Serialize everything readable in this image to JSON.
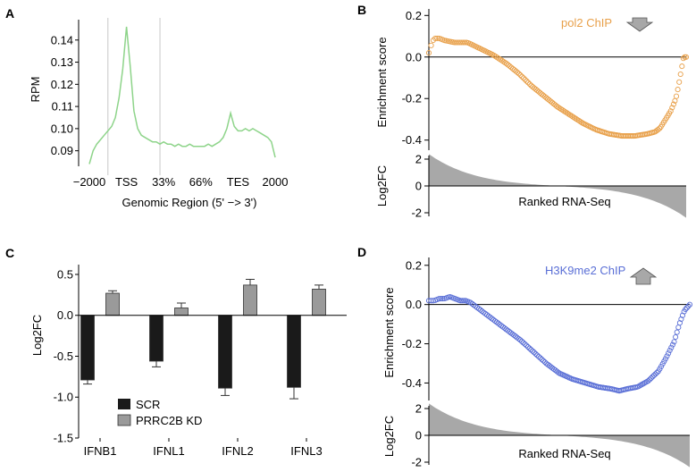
{
  "panels": {
    "a": "A",
    "b": "B",
    "c": "C",
    "d": "D"
  },
  "colors": {
    "green": "#8ed48a",
    "orange": "#e8a04a",
    "blue": "#5a6fd6",
    "gray": "#a8a8a8",
    "black": "#1a1a1a",
    "barGray": "#9a9a9a"
  },
  "chart_data": [
    {
      "id": "A",
      "type": "line",
      "title": "",
      "xlabel": "Genomic Region (5' −> 3')",
      "ylabel": "RPM",
      "xticks": [
        "−2000",
        "TSS",
        "33%",
        "66%",
        "TES",
        "2000"
      ],
      "yticks": [
        "0.09",
        "0.10",
        "0.11",
        "0.12",
        "0.13",
        "0.14"
      ],
      "ylim": [
        0.083,
        0.15
      ],
      "x": [
        0,
        2,
        4,
        6,
        8,
        10,
        12,
        14,
        16,
        18,
        20,
        22,
        24,
        26,
        28,
        30,
        32,
        34,
        36,
        38,
        40,
        42,
        44,
        46,
        48,
        50,
        52,
        54,
        56,
        58,
        60,
        62,
        64,
        66,
        68,
        70,
        72,
        74,
        76,
        78,
        80,
        82,
        84,
        86,
        88,
        90,
        92,
        94,
        96,
        98,
        100
      ],
      "y": [
        0.084,
        0.09,
        0.093,
        0.095,
        0.097,
        0.099,
        0.101,
        0.105,
        0.114,
        0.127,
        0.146,
        0.128,
        0.108,
        0.1,
        0.097,
        0.096,
        0.095,
        0.094,
        0.094,
        0.093,
        0.094,
        0.093,
        0.093,
        0.092,
        0.093,
        0.092,
        0.092,
        0.093,
        0.092,
        0.092,
        0.092,
        0.092,
        0.093,
        0.092,
        0.093,
        0.094,
        0.096,
        0.1,
        0.107,
        0.101,
        0.099,
        0.099,
        0.1,
        0.099,
        0.1,
        0.099,
        0.098,
        0.097,
        0.096,
        0.094,
        0.087
      ],
      "vlines": [
        10,
        38
      ]
    },
    {
      "id": "B",
      "type": "scatter",
      "title": "pol2 ChIP",
      "ylabel": "Enrichment score",
      "yticks": [
        "0.2",
        "0.0",
        "-0.2",
        "-0.4"
      ],
      "ylim": [
        -0.44,
        0.24
      ],
      "curve_x": [
        0,
        1,
        2,
        4,
        6,
        10,
        15,
        20,
        25,
        30,
        35,
        40,
        45,
        50,
        55,
        60,
        65,
        70,
        75,
        80,
        85,
        88,
        90,
        92,
        94,
        96,
        97,
        98,
        99,
        100
      ],
      "curve_y": [
        0.02,
        0.06,
        0.09,
        0.09,
        0.08,
        0.07,
        0.07,
        0.04,
        0.01,
        -0.03,
        -0.08,
        -0.14,
        -0.19,
        -0.24,
        -0.28,
        -0.32,
        -0.35,
        -0.37,
        -0.38,
        -0.38,
        -0.37,
        -0.36,
        -0.34,
        -0.3,
        -0.26,
        -0.2,
        -0.14,
        -0.07,
        0.0,
        0.0
      ],
      "sub_ylabel": "Log2FC",
      "sub_yticks": [
        "2",
        "0",
        "-2"
      ],
      "sub_xlabel": "Ranked RNA-Seq",
      "arrow": "down"
    },
    {
      "id": "C",
      "type": "bar",
      "categories": [
        "IFNB1",
        "IFNL1",
        "IFNL2",
        "IFNL3"
      ],
      "series": [
        {
          "name": "SCR",
          "values": [
            -0.79,
            -0.56,
            -0.89,
            -0.88
          ],
          "errors": [
            0.05,
            0.07,
            0.09,
            0.14
          ]
        },
        {
          "name": "PRRC2B KD",
          "values": [
            0.27,
            0.09,
            0.37,
            0.32
          ],
          "errors": [
            0.03,
            0.06,
            0.07,
            0.05
          ]
        }
      ],
      "ylabel": "Log2FC",
      "yticks": [
        "0.5",
        "0.0",
        "-0.5",
        "-1.0",
        "-1.5"
      ],
      "ylim": [
        -1.5,
        0.62
      ]
    },
    {
      "id": "D",
      "type": "scatter",
      "title": "H3K9me2 ChIP",
      "ylabel": "Enrichment score",
      "yticks": [
        "0.2",
        "0.0",
        "-0.2",
        "-0.4"
      ],
      "ylim": [
        -0.48,
        0.24
      ],
      "curve_x": [
        0,
        2,
        4,
        6,
        8,
        10,
        12,
        14,
        16,
        20,
        25,
        30,
        35,
        40,
        45,
        50,
        55,
        60,
        65,
        70,
        73,
        76,
        80,
        84,
        88,
        91,
        94,
        96,
        98,
        100
      ],
      "curve_y": [
        0.02,
        0.02,
        0.03,
        0.03,
        0.04,
        0.03,
        0.02,
        0.02,
        0.01,
        -0.03,
        -0.08,
        -0.13,
        -0.18,
        -0.24,
        -0.3,
        -0.35,
        -0.38,
        -0.4,
        -0.42,
        -0.43,
        -0.44,
        -0.43,
        -0.42,
        -0.39,
        -0.34,
        -0.27,
        -0.19,
        -0.1,
        -0.03,
        0.0
      ],
      "sub_ylabel": "Log2FC",
      "sub_yticks": [
        "2",
        "0",
        "-2"
      ],
      "sub_xlabel": "Ranked RNA-Seq",
      "arrow": "up"
    }
  ]
}
